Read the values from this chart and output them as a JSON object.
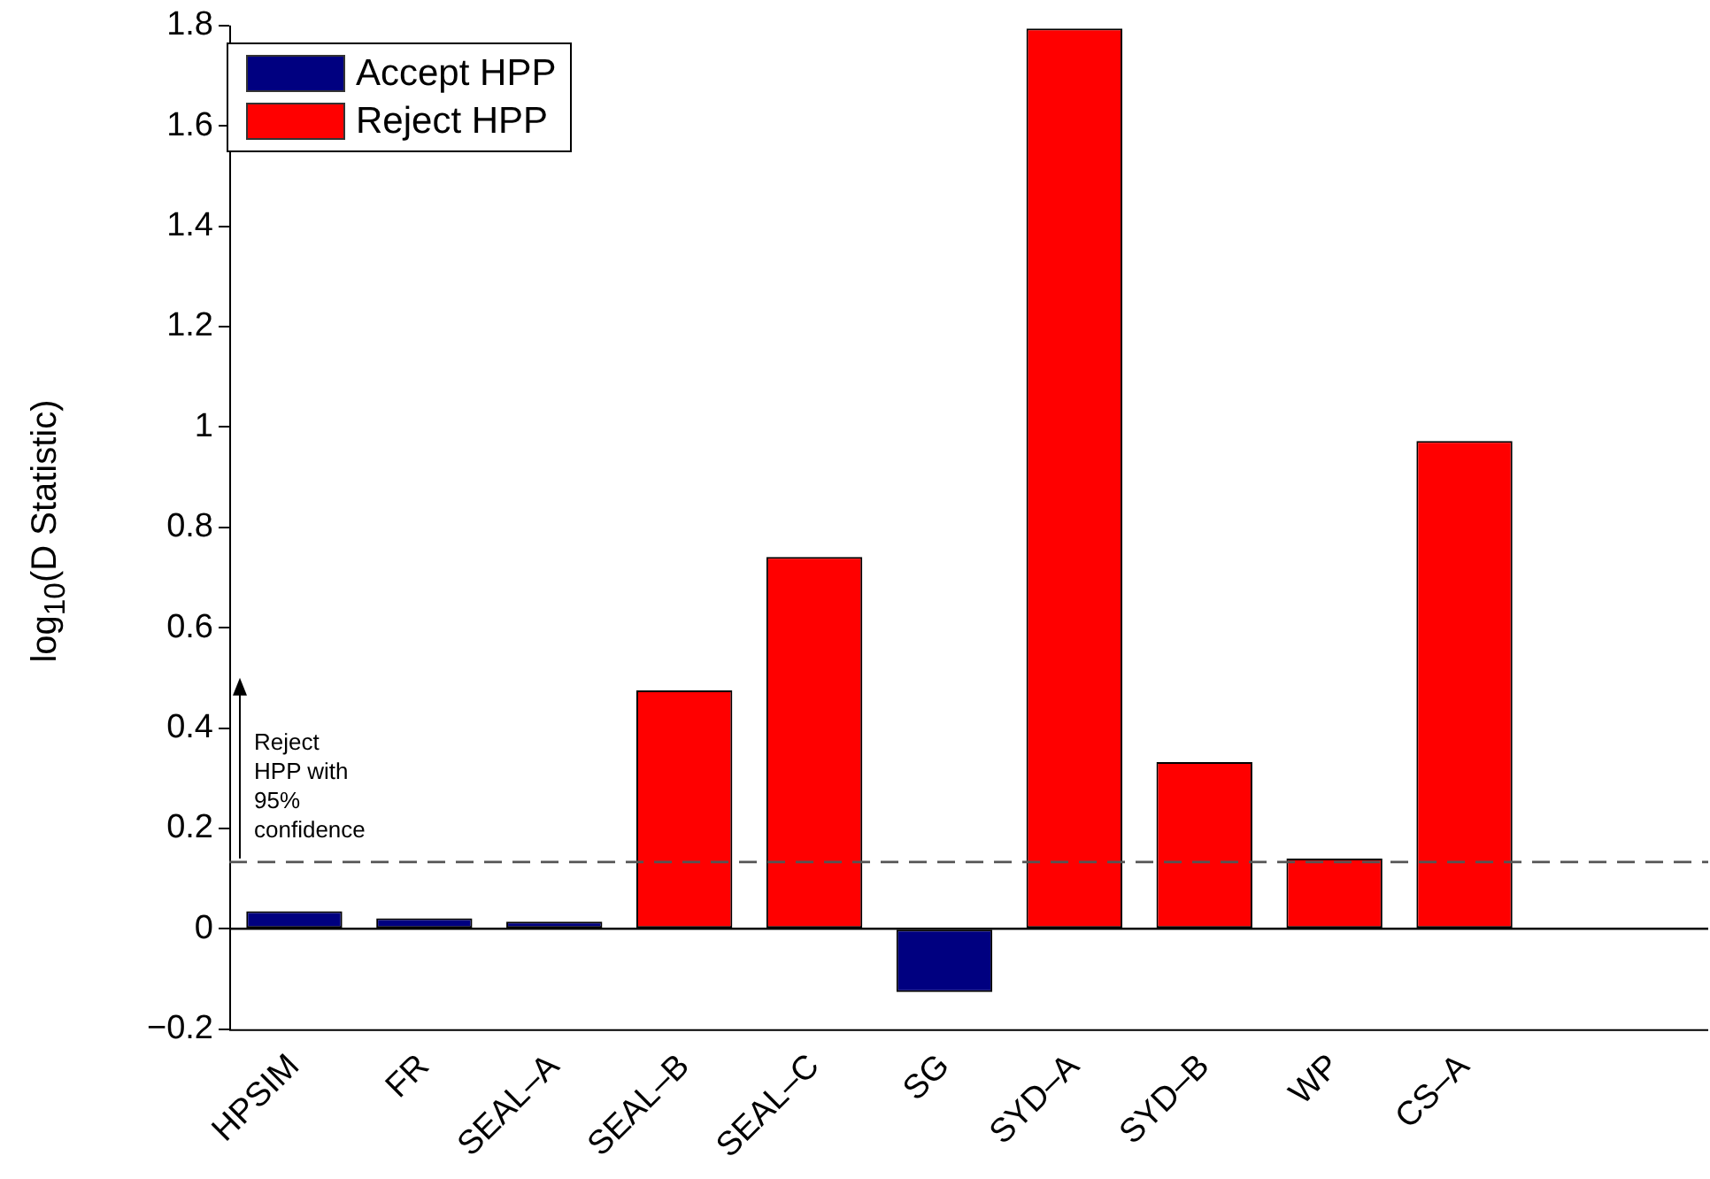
{
  "chart_data": {
    "type": "bar",
    "ylabel": "log$_{10}$(D Statistic)",
    "categories": [
      "HPSIM",
      "FR",
      "SEAL–A",
      "SEAL–B",
      "SEAL–C",
      "SG",
      "SYD–A",
      "SYD–B",
      "WP",
      "CS–A"
    ],
    "series": [
      {
        "name": "Accept HPP",
        "color": "#000080",
        "values": [
          0.035,
          0.021,
          0.014,
          null,
          null,
          -0.126,
          null,
          null,
          null,
          null
        ]
      },
      {
        "name": "Reject HPP",
        "color": "#ff0000",
        "values": [
          null,
          null,
          null,
          0.475,
          0.741,
          null,
          1.794,
          0.332,
          0.14,
          0.972
        ]
      }
    ],
    "ylim": [
      -0.2,
      1.8
    ],
    "yticks": [
      {
        "value": -0.2,
        "label": "−0.2"
      },
      0,
      0.2,
      0.4,
      0.6,
      0.8,
      1,
      1.2,
      1.4,
      1.6,
      1.8
    ],
    "ref_lines": [
      {
        "axis": "y",
        "value": 0.133,
        "label": "Reject HPP with 95% confidence",
        "color": "#555555",
        "line_style": "dashed"
      },
      {
        "axis": "y",
        "value": 0,
        "color": "#000000",
        "line_style": "solid"
      }
    ],
    "grid": false,
    "legend": "top left"
  }
}
